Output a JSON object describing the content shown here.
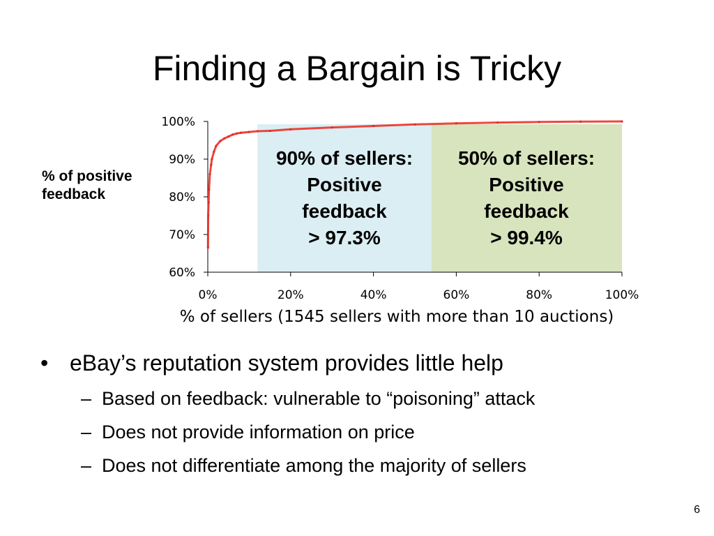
{
  "slide": {
    "title": "Finding a Bargain is Tricky",
    "page_number": "6"
  },
  "bullets": {
    "main": "eBay’s reputation system provides little help",
    "sub": [
      "Based on feedback: vulnerable to “poisoning” attack",
      "Does not provide information on price",
      "Does not differentiate among the majority of sellers"
    ],
    "main_marker": "•",
    "sub_marker": "–"
  },
  "chart_data": {
    "type": "line",
    "xlabel": "% of sellers (1545 sellers with more than 10 auctions)",
    "ylabel": "% of positive\nfeedback",
    "xlim": [
      0,
      100
    ],
    "ylim": [
      60,
      100
    ],
    "x_ticks": [
      "0%",
      "20%",
      "40%",
      "60%",
      "80%",
      "100%"
    ],
    "y_ticks": [
      "100%",
      "90%",
      "80%",
      "70%",
      "60%"
    ],
    "grid": false,
    "series": [
      {
        "color": "#e8281e",
        "x": [
          0.05,
          0.1,
          0.2,
          0.3,
          0.5,
          0.8,
          1,
          1.5,
          2,
          3,
          4,
          5,
          6,
          7,
          8,
          10,
          12,
          15,
          20,
          30,
          40,
          50,
          60,
          70,
          80,
          90,
          100
        ],
        "y": [
          66.5,
          75,
          78.5,
          82,
          86,
          88.5,
          90,
          92,
          93.5,
          94.8,
          95.5,
          96,
          96.5,
          96.8,
          97,
          97.2,
          97.4,
          97.5,
          97.9,
          98.4,
          98.8,
          99.2,
          99.5,
          99.7,
          99.85,
          99.95,
          100
        ]
      }
    ],
    "shaded_regions": [
      {
        "x0": 12,
        "x1": 54,
        "color": "#daeef3"
      },
      {
        "x0": 54,
        "x1": 100,
        "color": "#d7e4bd"
      }
    ],
    "annotations": [
      {
        "text": "90% of sellers:\nPositive\nfeedback\n> 97.3%"
      },
      {
        "text": "50% of sellers:\nPositive\nfeedback\n> 99.4%"
      }
    ]
  }
}
